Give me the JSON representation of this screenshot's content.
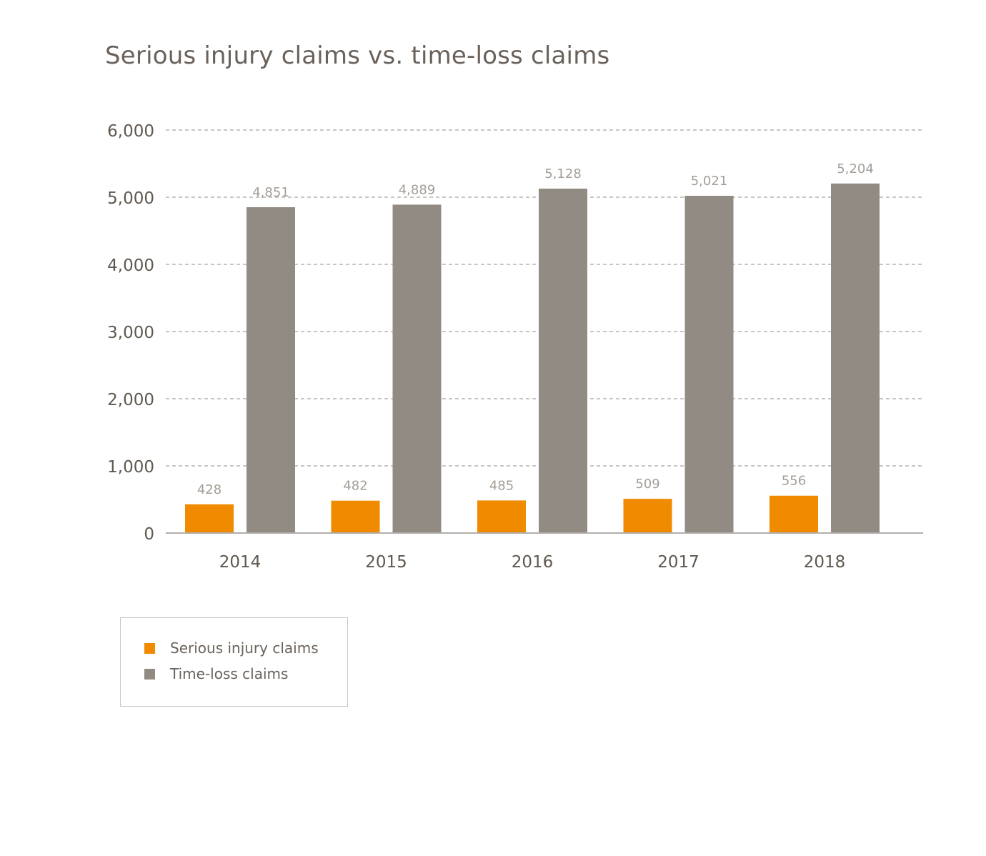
{
  "chart_data": {
    "type": "bar",
    "title": "Serious injury claims vs. time-loss claims",
    "xlabel": "",
    "ylabel": "",
    "categories": [
      "2014",
      "2015",
      "2016",
      "2017",
      "2018"
    ],
    "series": [
      {
        "name": "Serious injury claims",
        "values": [
          428,
          482,
          485,
          509,
          556
        ],
        "labels": [
          "428",
          "482",
          "485",
          "509",
          "556"
        ],
        "color": "#f08b00"
      },
      {
        "name": "Time-loss claims",
        "values": [
          4851,
          4889,
          5128,
          5021,
          5204
        ],
        "labels": [
          "4,851",
          "4,889",
          "5,128",
          "5,021",
          "5,204"
        ],
        "color": "#928b83"
      }
    ],
    "ylim": [
      0,
      6000
    ],
    "yticks": [
      0,
      1000,
      2000,
      3000,
      4000,
      5000,
      6000
    ],
    "ytick_labels": [
      "0",
      "1,000",
      "2,000",
      "3,000",
      "4,000",
      "5,000",
      "6,000"
    ],
    "grid": "dashed horizontal",
    "legend_position": "bottom-left",
    "colors": {
      "axis_text": "#5f5850",
      "data_label": "#a39d96",
      "grid": "#a8a39e",
      "baseline": "#b2aeaa"
    }
  }
}
